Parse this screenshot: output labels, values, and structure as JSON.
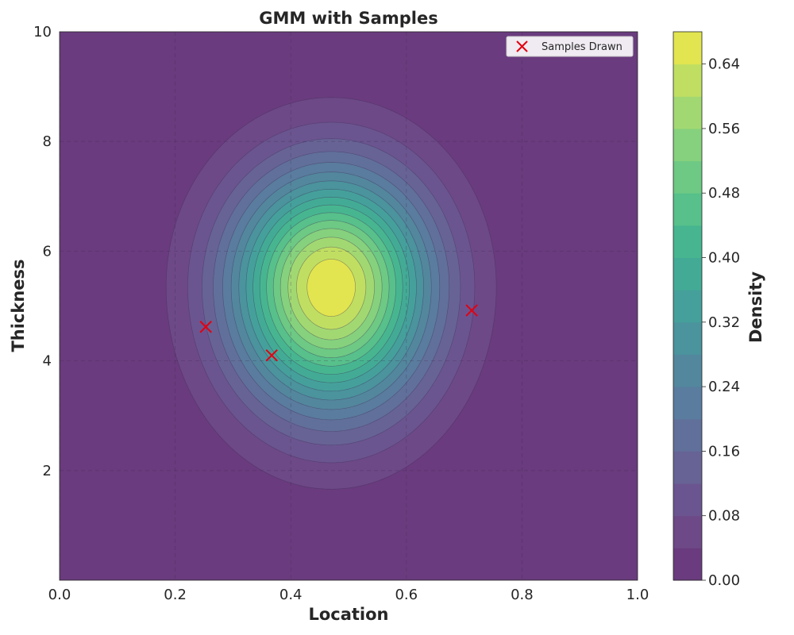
{
  "chart_data": {
    "type": "contour",
    "title": "GMM with Samples",
    "xlabel": "Location",
    "ylabel": "Thickness",
    "colorbar_label": "Density",
    "xlim": [
      0.0,
      1.0
    ],
    "ylim": [
      0.0,
      10.0
    ],
    "x_ticks": [
      "0.0",
      "0.2",
      "0.4",
      "0.6",
      "0.8",
      "1.0"
    ],
    "y_ticks": [
      "2",
      "4",
      "6",
      "8",
      "10"
    ],
    "grid": true,
    "colormap": "viridis",
    "density": {
      "mean_x": 0.47,
      "mean_y": 5.35,
      "peak": 0.68,
      "std_x": 0.12,
      "std_y_below": 1.55,
      "std_y_above": 1.45
    },
    "levels": [
      0.0,
      0.04,
      0.08,
      0.12,
      0.16,
      0.2,
      0.24,
      0.28,
      0.32,
      0.36,
      0.4,
      0.44,
      0.48,
      0.52,
      0.56,
      0.6,
      0.64,
      0.68
    ],
    "level_colors": [
      "#6a3b7e",
      "#6d4987",
      "#6b5590",
      "#676395",
      "#61709a",
      "#5a7c9e",
      "#53879e",
      "#4b939d",
      "#45a09b",
      "#43ab95",
      "#47b690",
      "#57c08b",
      "#6dc984",
      "#86d17d",
      "#a2d872",
      "#c0df62",
      "#e2e54f"
    ],
    "colorbar_ticks": [
      "0.00",
      "0.08",
      "0.16",
      "0.24",
      "0.32",
      "0.40",
      "0.48",
      "0.56",
      "0.64"
    ],
    "legend": {
      "label": "Samples Drawn",
      "position": "upper right"
    },
    "samples": [
      {
        "x": 0.253,
        "y": 4.62
      },
      {
        "x": 0.367,
        "y": 4.1
      },
      {
        "x": 0.713,
        "y": 4.92
      }
    ]
  }
}
